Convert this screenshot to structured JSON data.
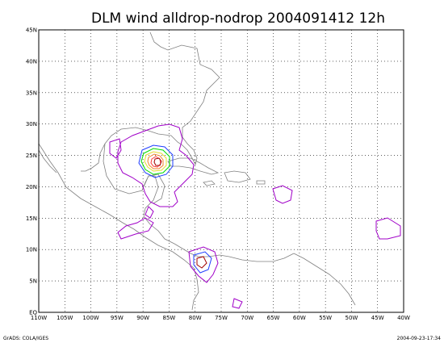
{
  "title": "DLM wind alldrop-nodrop 2004091412 12h",
  "footer_left": "GrADS: COLA/IGES",
  "footer_right": "2004-09-23-17:34",
  "map": {
    "lon_range": [
      -110,
      -40
    ],
    "lat_range": [
      0,
      45
    ],
    "lon_ticks": [
      {
        "lon": -110,
        "label": "110W"
      },
      {
        "lon": -105,
        "label": "105W"
      },
      {
        "lon": -100,
        "label": "100W"
      },
      {
        "lon": -95,
        "label": "95W"
      },
      {
        "lon": -90,
        "label": "90W"
      },
      {
        "lon": -85,
        "label": "85W"
      },
      {
        "lon": -80,
        "label": "80W"
      },
      {
        "lon": -75,
        "label": "75W"
      },
      {
        "lon": -70,
        "label": "70W"
      },
      {
        "lon": -65,
        "label": "65W"
      },
      {
        "lon": -60,
        "label": "60W"
      },
      {
        "lon": -55,
        "label": "55W"
      },
      {
        "lon": -50,
        "label": "50W"
      },
      {
        "lon": -45,
        "label": "45W"
      },
      {
        "lon": -40,
        "label": "40W"
      }
    ],
    "lat_ticks": [
      {
        "lat": 0,
        "label": "EQ"
      },
      {
        "lat": 5,
        "label": "5N"
      },
      {
        "lat": 10,
        "label": "10N"
      },
      {
        "lat": 15,
        "label": "15N"
      },
      {
        "lat": 20,
        "label": "20N"
      },
      {
        "lat": 25,
        "label": "25N"
      },
      {
        "lat": 30,
        "label": "30N"
      },
      {
        "lat": 35,
        "label": "35N"
      },
      {
        "lat": 40,
        "label": "40N"
      },
      {
        "lat": 45,
        "label": "45N"
      }
    ],
    "grid": "dotted",
    "coastline_color": "#808080",
    "contour_colors": [
      "#a000c8",
      "#1e3cff",
      "#00dc00",
      "#e6dc32",
      "#f08228",
      "#fa3c3c",
      "#a00000"
    ]
  }
}
